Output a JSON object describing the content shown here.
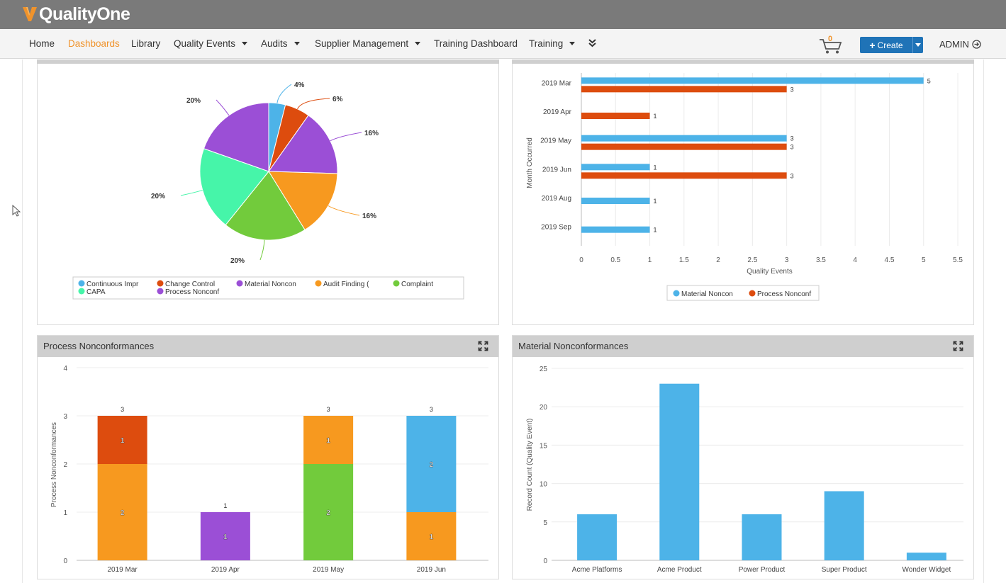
{
  "app": {
    "name": "QualityOne",
    "brand_color": "#f0932b"
  },
  "nav": {
    "items": [
      {
        "label": "Home",
        "active": false,
        "dropdown": false
      },
      {
        "label": "Dashboards",
        "active": true,
        "dropdown": false
      },
      {
        "label": "Library",
        "active": false,
        "dropdown": false
      },
      {
        "label": "Quality Events",
        "active": false,
        "dropdown": true
      },
      {
        "label": "Audits",
        "active": false,
        "dropdown": true
      },
      {
        "label": "Supplier Management",
        "active": false,
        "dropdown": true
      },
      {
        "label": "Training Dashboard",
        "active": false,
        "dropdown": false
      },
      {
        "label": "Training",
        "active": false,
        "dropdown": true
      }
    ],
    "more_icon": "double-chevron-down-icon",
    "cart_count": "0",
    "create_label": "Create",
    "user_label": "ADMIN"
  },
  "panels": {
    "pie": {
      "title": ""
    },
    "month_bar": {
      "title": ""
    },
    "process": {
      "title": "Process Nonconformances"
    },
    "material": {
      "title": "Material Nonconformances"
    }
  },
  "chart_data": [
    {
      "type": "pie",
      "title": "",
      "slices": [
        {
          "label": "Continuous Impr",
          "value": 4,
          "display": "4%",
          "color": "#4db3e8"
        },
        {
          "label": "Change Control",
          "value": 6,
          "display": "6%",
          "color": "#dd4c0e"
        },
        {
          "label": "Material Noncon",
          "value": 16,
          "display": "16%",
          "color": "#9b4fd6"
        },
        {
          "label": "Audit Finding (",
          "value": 16,
          "display": "16%",
          "color": "#f7991f"
        },
        {
          "label": "Complaint",
          "value": 20,
          "display": "20%",
          "color": "#72cb3c"
        },
        {
          "label": "CAPA",
          "value": 20,
          "display": "20%",
          "color": "#46f5a9"
        },
        {
          "label": "Process Nonconf",
          "value": 20,
          "display": "20%",
          "color": "#9b4fd6"
        }
      ],
      "legend": [
        "Continuous Impr",
        "Change Control",
        "Material Noncon",
        "Audit Finding (",
        "Complaint",
        "CAPA",
        "Process Nonconf"
      ],
      "legend_position": "bottom"
    },
    {
      "type": "bar",
      "orientation": "horizontal",
      "title": "",
      "categories": [
        "2019 Mar",
        "2019 Apr",
        "2019 May",
        "2019 Jun",
        "2019 Aug",
        "2019 Sep"
      ],
      "series": [
        {
          "name": "Material Noncon",
          "values": [
            5,
            null,
            3,
            1,
            1,
            1
          ],
          "color": "#4db3e8"
        },
        {
          "name": "Process Nonconf",
          "values": [
            3,
            1,
            3,
            3,
            null,
            null
          ],
          "color": "#dd4c0e"
        }
      ],
      "xlabel": "Quality Events",
      "ylabel": "Month Occurred",
      "xlim": [
        0,
        5.5
      ],
      "xticks": [
        "0",
        "0.5",
        "1",
        "1.5",
        "2",
        "2.5",
        "3",
        "3.5",
        "4",
        "4.5",
        "5",
        "5.5"
      ],
      "grid": true,
      "legend_position": "bottom"
    },
    {
      "type": "bar",
      "stacked": true,
      "title": "Process Nonconformances",
      "categories": [
        "2019 Mar",
        "2019 Apr",
        "2019 May",
        "2019 Jun"
      ],
      "stacks": [
        {
          "total": 3,
          "segments": [
            {
              "value": 2,
              "color": "#f7991f"
            },
            {
              "value": 1,
              "color": "#dd4c0e"
            }
          ]
        },
        {
          "total": 1,
          "segments": [
            {
              "value": 1,
              "color": "#9b4fd6"
            }
          ]
        },
        {
          "total": 3,
          "segments": [
            {
              "value": 2,
              "color": "#72cb3c"
            },
            {
              "value": 1,
              "color": "#f7991f"
            }
          ]
        },
        {
          "total": 3,
          "segments": [
            {
              "value": 1,
              "color": "#f7991f"
            },
            {
              "value": 2,
              "color": "#4db3e8"
            }
          ]
        }
      ],
      "ylabel": "Process Nonconformances",
      "ylim": [
        0,
        4
      ],
      "yticks": [
        "0",
        "1",
        "2",
        "3",
        "4"
      ],
      "grid": true
    },
    {
      "type": "bar",
      "title": "Material Nonconformances",
      "categories": [
        "Acme Platforms",
        "Acme Product",
        "Power Product",
        "Super Product",
        "Wonder Widget"
      ],
      "values": [
        6,
        23,
        6,
        9,
        1
      ],
      "color": "#4db3e8",
      "ylabel": "Record Count (Quality Event)",
      "ylim": [
        0,
        25
      ],
      "yticks": [
        "0",
        "5",
        "10",
        "15",
        "20",
        "25"
      ],
      "grid": true
    }
  ]
}
